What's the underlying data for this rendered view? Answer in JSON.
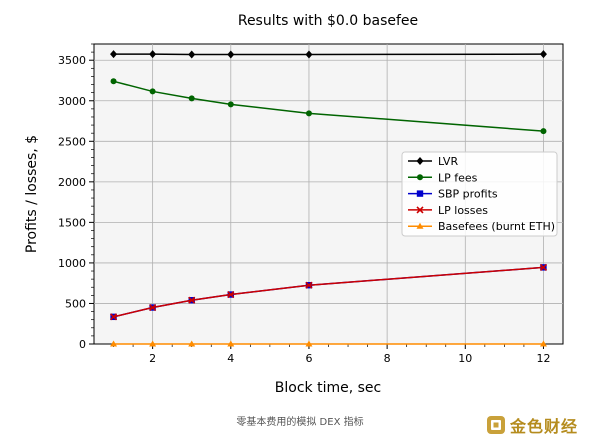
{
  "chart_data": {
    "type": "line",
    "title": "Results with $0.0 basefee",
    "xlabel": "Block time, sec",
    "ylabel": "Profits / losses, $",
    "x": [
      1,
      2,
      3,
      4,
      6,
      12
    ],
    "xlim": [
      0.5,
      12.5
    ],
    "ylim": [
      0,
      3700
    ],
    "xticks": [
      2,
      4,
      6,
      8,
      10,
      12
    ],
    "yticks": [
      0,
      500,
      1000,
      1500,
      2000,
      2500,
      3000,
      3500
    ],
    "grid": true,
    "legend_position": "center-right",
    "series": [
      {
        "name": "LVR",
        "values": [
          3575,
          3575,
          3570,
          3570,
          3570,
          3575
        ],
        "color": "#000000",
        "marker": "diamond"
      },
      {
        "name": "LP fees",
        "values": [
          3240,
          3115,
          3030,
          2955,
          2845,
          2625
        ],
        "color": "#006400",
        "marker": "circle"
      },
      {
        "name": "SBP profits",
        "values": [
          335,
          450,
          540,
          610,
          725,
          945
        ],
        "color": "#0000cc",
        "marker": "square"
      },
      {
        "name": "LP losses",
        "values": [
          335,
          450,
          540,
          610,
          725,
          945
        ],
        "color": "#cc0000",
        "marker": "x"
      },
      {
        "name": "Basefees (burnt ETH)",
        "values": [
          0,
          0,
          0,
          0,
          0,
          0
        ],
        "color": "#ff8c00",
        "marker": "triangle"
      }
    ]
  },
  "caption": "零基本费用的模拟 DEX 指标",
  "watermark": "金色财经"
}
